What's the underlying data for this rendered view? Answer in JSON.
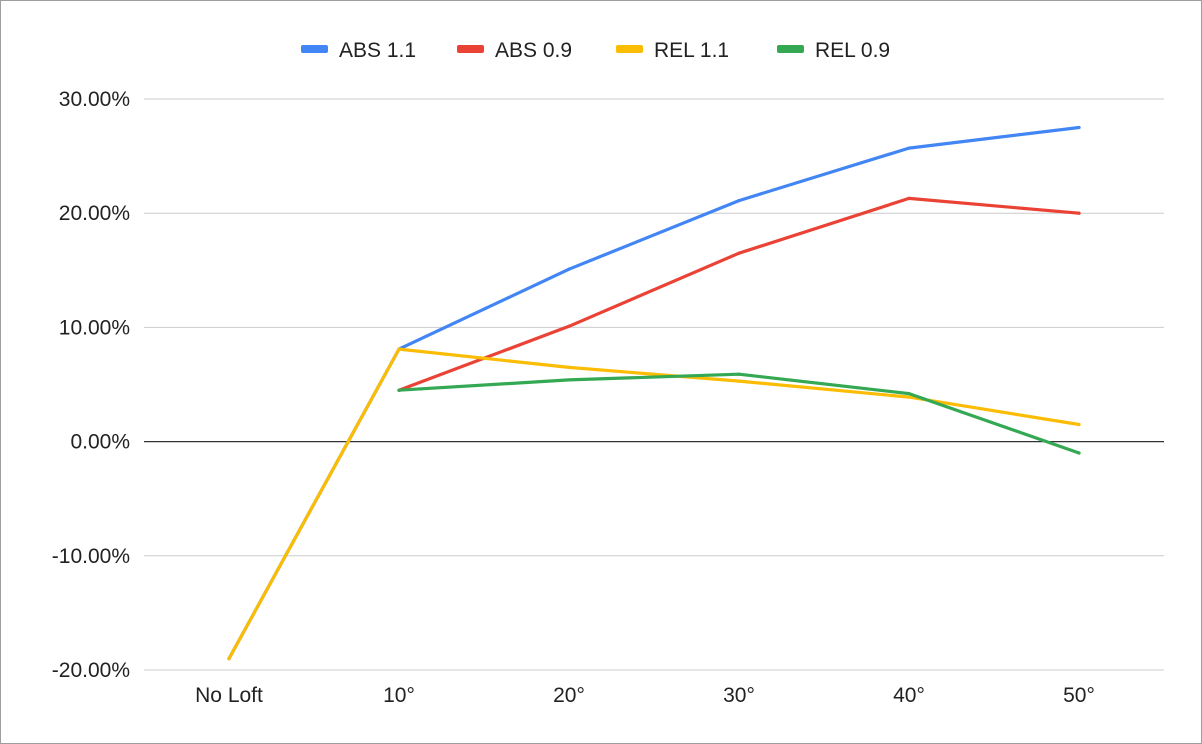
{
  "chart_data": {
    "type": "line",
    "title": "",
    "xlabel": "",
    "ylabel": "",
    "categories": [
      "No Loft",
      "10°",
      "20°",
      "30°",
      "40°",
      "50°"
    ],
    "ylim": [
      -0.2,
      0.3
    ],
    "yticks": [
      0.3,
      0.2,
      0.1,
      0.0,
      -0.1,
      -0.2
    ],
    "ytick_labels": [
      "30.00%",
      "20.00%",
      "10.00%",
      "0.00%",
      "-10.00%",
      "-20.00%"
    ],
    "grid": true,
    "legend_position": "top",
    "series": [
      {
        "name": "ABS 1.1",
        "color": "#4285f4",
        "values": [
          -0.19,
          0.081,
          0.151,
          0.211,
          0.257,
          0.275
        ]
      },
      {
        "name": "ABS 0.9",
        "color": "#ea4335",
        "values": [
          null,
          0.045,
          0.101,
          0.165,
          0.213,
          0.2
        ]
      },
      {
        "name": "REL 1.1",
        "color": "#fbbc04",
        "values": [
          -0.19,
          0.081,
          0.065,
          0.053,
          0.039,
          0.015
        ]
      },
      {
        "name": "REL 0.9",
        "color": "#34a853",
        "values": [
          null,
          0.045,
          0.054,
          0.059,
          0.042,
          -0.01
        ]
      }
    ]
  }
}
